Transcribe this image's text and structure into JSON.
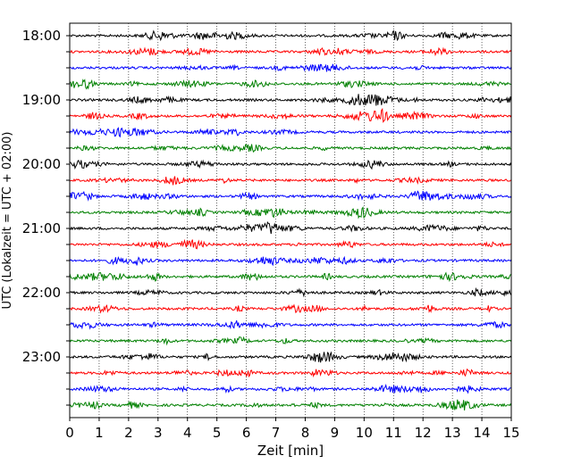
{
  "chart_data": {
    "type": "line",
    "subtype": "helicorder-seismogram",
    "title": "",
    "xlabel": "Zeit  [min]",
    "ylabel": "UTC (Lokalzeit = UTC + 02:00)",
    "xlim": [
      0,
      15
    ],
    "x_ticks": [
      "0",
      "1",
      "2",
      "3",
      "4",
      "5",
      "6",
      "7",
      "8",
      "9",
      "10",
      "11",
      "12",
      "13",
      "14",
      "15"
    ],
    "y_tick_labels": [
      "18:00",
      "19:00",
      "20:00",
      "21:00",
      "22:00",
      "23:00"
    ],
    "row_minutes": 15,
    "start_time": "18:00",
    "row_count": 24,
    "trace_colors": [
      "#000000",
      "#ff0000",
      "#0000ff",
      "#008000"
    ],
    "grid": "vertical-dotted"
  }
}
